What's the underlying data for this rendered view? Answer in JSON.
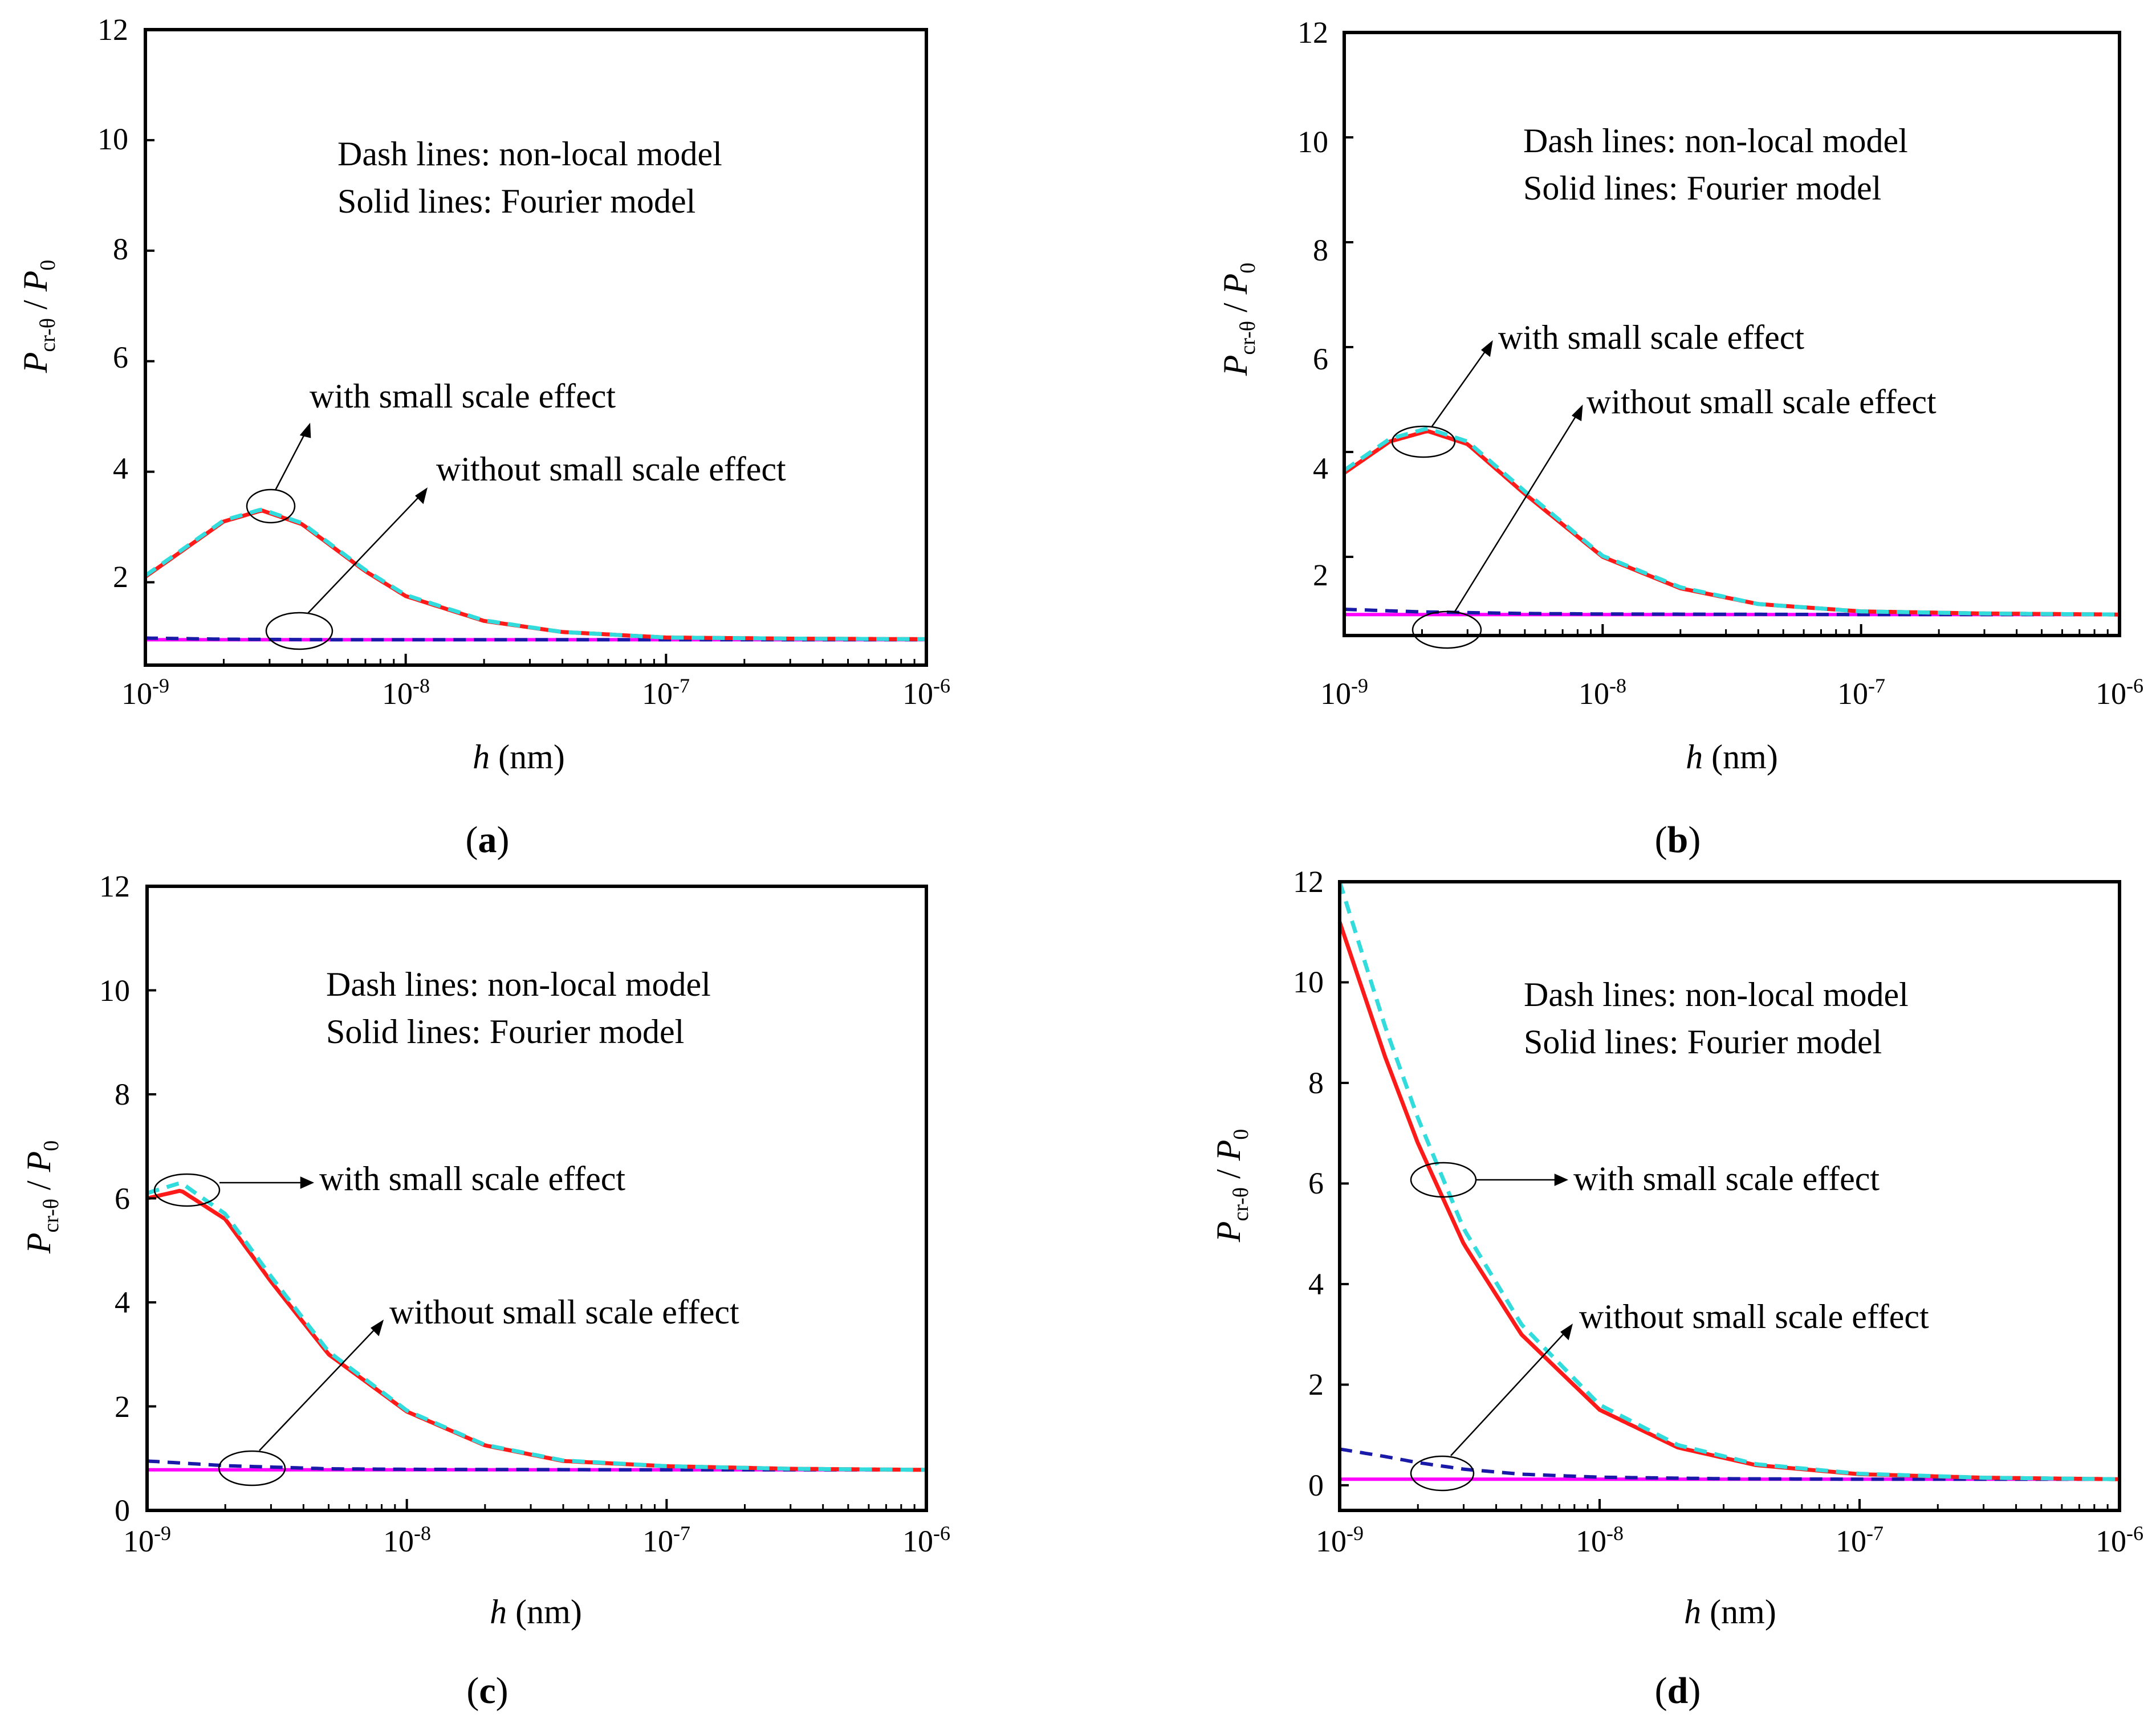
{
  "figure": {
    "style": {
      "frame_color": "#000000",
      "fourier_with_color": "#ff1a1a",
      "nonlocal_with_color": "#33dcdc",
      "fourier_without_color": "#ff00ff",
      "nonlocal_without_color": "#1a1aa8",
      "callout_color": "#000000"
    },
    "panels": [
      {
        "id": "a",
        "panel_label": "a",
        "ylabel_main": "P",
        "ylabel_sub": "cr-θ",
        "ylabel_slash": " / ",
        "ylabel_main2": "P",
        "ylabel_sub2": "0",
        "xlabel_var": "h",
        "xlabel_unit": " (nm)",
        "note_line1": "Dash lines: non-local model",
        "note_line2": "Solid lines: Fourier model",
        "with_label": "with small scale effect",
        "without_label": "without small scale effect",
        "xticks": [
          {
            "base": "10",
            "exp": "-9"
          },
          {
            "base": "10",
            "exp": "-8"
          },
          {
            "base": "10",
            "exp": "-7"
          },
          {
            "base": "10",
            "exp": "-6"
          }
        ],
        "yticks": [
          "2",
          "4",
          "6",
          "8",
          "10",
          "12"
        ],
        "chart_data": {
          "type": "line",
          "x_scale": "log",
          "xlim": [
            1e-09,
            1e-06
          ],
          "ylim": [
            0.5,
            12
          ],
          "xlabel": "h (nm)",
          "ylabel": "Pcr-θ / P0",
          "series": [
            {
              "name": "with small scale effect - Fourier model",
              "style": "solid",
              "x": [
                1e-09,
                2e-09,
                2.8e-09,
                4e-09,
                7e-09,
                1e-08,
                2e-08,
                4e-08,
                1e-07,
                3e-07,
                1e-06
              ],
              "y": [
                2.1,
                3.1,
                3.3,
                3.05,
                2.2,
                1.75,
                1.3,
                1.1,
                1.0,
                0.98,
                0.97
              ]
            },
            {
              "name": "with small scale effect - non-local model",
              "style": "dash",
              "x": [
                1e-09,
                2e-09,
                2.8e-09,
                4e-09,
                7e-09,
                1e-08,
                2e-08,
                4e-08,
                1e-07,
                3e-07,
                1e-06
              ],
              "y": [
                2.12,
                3.12,
                3.32,
                3.07,
                2.22,
                1.77,
                1.31,
                1.1,
                1.0,
                0.98,
                0.97
              ]
            },
            {
              "name": "without small scale effect - Fourier model",
              "style": "solid",
              "x": [
                1e-09,
                1e-06
              ],
              "y": [
                0.96,
                0.96
              ]
            },
            {
              "name": "without small scale effect - non-local model",
              "style": "dash",
              "x": [
                1e-09,
                2e-09,
                5e-09,
                1e-08,
                1e-07,
                1e-06
              ],
              "y": [
                0.99,
                0.97,
                0.96,
                0.96,
                0.96,
                0.96
              ]
            }
          ]
        }
      },
      {
        "id": "b",
        "panel_label": "b",
        "ylabel_main": "P",
        "ylabel_sub": "cr-θ",
        "ylabel_slash": " / ",
        "ylabel_main2": "P",
        "ylabel_sub2": "0",
        "xlabel_var": "h",
        "xlabel_unit": " (nm)",
        "note_line1": "Dash lines: non-local model",
        "note_line2": "Solid lines: Fourier model",
        "with_label": "with small scale effect",
        "without_label": "without small scale effect",
        "xticks": [
          {
            "base": "10",
            "exp": "-9"
          },
          {
            "base": "10",
            "exp": "-8"
          },
          {
            "base": "10",
            "exp": "-7"
          },
          {
            "base": "10",
            "exp": "-6"
          }
        ],
        "yticks": [
          "2",
          "4",
          "6",
          "8",
          "10",
          "12"
        ],
        "chart_data": {
          "type": "line",
          "x_scale": "log",
          "xlim": [
            1e-09,
            1e-06
          ],
          "ylim": [
            0.5,
            12
          ],
          "xlabel": "h (nm)",
          "ylabel": "Pcr-θ / P0",
          "series": [
            {
              "name": "with small scale effect - Fourier model",
              "style": "solid",
              "x": [
                1e-09,
                1.5e-09,
                2.1e-09,
                3e-09,
                5e-09,
                1e-08,
                2e-08,
                4e-08,
                1e-07,
                3e-07,
                1e-06
              ],
              "y": [
                3.6,
                4.2,
                4.4,
                4.15,
                3.2,
                2.0,
                1.4,
                1.1,
                0.96,
                0.92,
                0.9
              ]
            },
            {
              "name": "with small scale effect - non-local model",
              "style": "dash",
              "x": [
                1e-09,
                1.5e-09,
                2.1e-09,
                3e-09,
                5e-09,
                1e-08,
                2e-08,
                4e-08,
                1e-07,
                3e-07,
                1e-06
              ],
              "y": [
                3.65,
                4.25,
                4.45,
                4.2,
                3.25,
                2.02,
                1.42,
                1.1,
                0.96,
                0.92,
                0.9
              ]
            },
            {
              "name": "without small scale effect - Fourier model",
              "style": "solid",
              "x": [
                1e-09,
                1e-06
              ],
              "y": [
                0.9,
                0.9
              ]
            },
            {
              "name": "without small scale effect - non-local model",
              "style": "dash",
              "x": [
                1e-09,
                2e-09,
                5e-09,
                1e-08,
                1e-07,
                1e-06
              ],
              "y": [
                1.0,
                0.95,
                0.92,
                0.91,
                0.9,
                0.9
              ]
            }
          ]
        }
      },
      {
        "id": "c",
        "panel_label": "c",
        "ylabel_main": "P",
        "ylabel_sub": "cr-θ",
        "ylabel_slash": " / ",
        "ylabel_main2": "P",
        "ylabel_sub2": "0",
        "xlabel_var": "h",
        "xlabel_unit": " (nm)",
        "note_line1": "Dash lines: non-local model",
        "note_line2": "Solid lines: Fourier model",
        "with_label": "with small scale effect",
        "without_label": "without small scale effect",
        "xticks": [
          {
            "base": "10",
            "exp": "-9"
          },
          {
            "base": "10",
            "exp": "-8"
          },
          {
            "base": "10",
            "exp": "-7"
          },
          {
            "base": "10",
            "exp": "-6"
          }
        ],
        "yticks": [
          "0",
          "2",
          "4",
          "6",
          "8",
          "10",
          "12"
        ],
        "chart_data": {
          "type": "line",
          "x_scale": "log",
          "xlim": [
            1e-09,
            1e-06
          ],
          "ylim": [
            0,
            12
          ],
          "xlabel": "h (nm)",
          "ylabel": "Pcr-θ / P0",
          "series": [
            {
              "name": "with small scale effect - Fourier model",
              "style": "solid",
              "x": [
                1e-09,
                1.35e-09,
                2e-09,
                3e-09,
                5e-09,
                1e-08,
                2e-08,
                4e-08,
                1e-07,
                3e-07,
                1e-06
              ],
              "y": [
                6.0,
                6.15,
                5.6,
                4.4,
                3.0,
                1.9,
                1.25,
                0.95,
                0.85,
                0.8,
                0.78
              ]
            },
            {
              "name": "with small scale effect - non-local model",
              "style": "dash",
              "x": [
                1e-09,
                1.35e-09,
                2e-09,
                3e-09,
                5e-09,
                1e-08,
                2e-08,
                4e-08,
                1e-07,
                3e-07,
                1e-06
              ],
              "y": [
                6.1,
                6.3,
                5.7,
                4.5,
                3.05,
                1.92,
                1.26,
                0.96,
                0.85,
                0.8,
                0.78
              ]
            },
            {
              "name": "without small scale effect - Fourier model",
              "style": "solid",
              "x": [
                1e-09,
                1e-06
              ],
              "y": [
                0.78,
                0.78
              ]
            },
            {
              "name": "without small scale effect - non-local model",
              "style": "dash",
              "x": [
                1e-09,
                2e-09,
                5e-09,
                1e-08,
                1e-07,
                1e-06
              ],
              "y": [
                0.95,
                0.86,
                0.8,
                0.79,
                0.78,
                0.78
              ]
            }
          ]
        }
      },
      {
        "id": "d",
        "panel_label": "d",
        "ylabel_main": "P",
        "ylabel_sub": "cr-θ",
        "ylabel_slash": " / ",
        "ylabel_main2": "P",
        "ylabel_sub2": "0",
        "xlabel_var": "h",
        "xlabel_unit": " (nm)",
        "note_line1": "Dash lines: non-local model",
        "note_line2": "Solid lines: Fourier model",
        "with_label": "with small scale effect",
        "without_label": "without small scale effect",
        "xticks": [
          {
            "base": "10",
            "exp": "-9"
          },
          {
            "base": "10",
            "exp": "-8"
          },
          {
            "base": "10",
            "exp": "-7"
          },
          {
            "base": "10",
            "exp": "-6"
          }
        ],
        "yticks": [
          "0",
          "2",
          "4",
          "6",
          "8",
          "10",
          "12"
        ],
        "chart_data": {
          "type": "line",
          "x_scale": "log",
          "xlim": [
            1e-09,
            1e-06
          ],
          "ylim": [
            -0.5,
            12
          ],
          "xlabel": "h (nm)",
          "ylabel": "Pcr-θ / P0",
          "series": [
            {
              "name": "with small scale effect - Fourier model",
              "style": "solid",
              "x": [
                1e-09,
                1.5e-09,
                2e-09,
                3e-09,
                5e-09,
                1e-08,
                2e-08,
                4e-08,
                1e-07,
                3e-07,
                1e-06
              ],
              "y": [
                11.2,
                8.5,
                6.8,
                4.8,
                3.0,
                1.5,
                0.75,
                0.4,
                0.22,
                0.15,
                0.12
              ]
            },
            {
              "name": "with small scale effect - non-local model",
              "style": "dash",
              "x": [
                1e-09,
                1.5e-09,
                2e-09,
                3e-09,
                5e-09,
                1e-08,
                2e-08,
                4e-08,
                1e-07,
                3e-07,
                1e-06
              ],
              "y": [
                12.0,
                9.1,
                7.3,
                5.1,
                3.2,
                1.6,
                0.8,
                0.42,
                0.23,
                0.15,
                0.12
              ]
            },
            {
              "name": "without small scale effect - Fourier model",
              "style": "solid",
              "x": [
                1e-09,
                1e-06
              ],
              "y": [
                0.12,
                0.12
              ]
            },
            {
              "name": "without small scale effect - non-local model",
              "style": "dash",
              "x": [
                1e-09,
                1.5e-09,
                2e-09,
                3e-09,
                5e-09,
                1e-08,
                3e-08,
                1e-07,
                1e-06
              ],
              "y": [
                0.72,
                0.57,
                0.45,
                0.32,
                0.22,
                0.16,
                0.13,
                0.12,
                0.12
              ]
            }
          ]
        }
      }
    ]
  }
}
